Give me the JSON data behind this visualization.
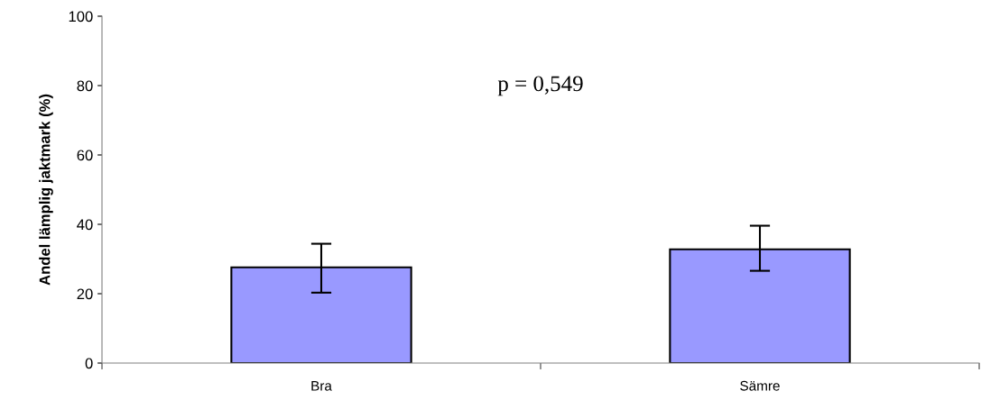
{
  "chart_data": {
    "type": "bar",
    "ylabel": "Andel lämplig jaktmark (%)",
    "categories": [
      "Bra",
      "Sämre"
    ],
    "values": [
      27.6,
      32.8
    ],
    "errors": [
      [
        20.3,
        34.4
      ],
      [
        26.6,
        39.6
      ]
    ],
    "color": "#9999ff",
    "ylim": [
      0,
      100
    ],
    "yticks": [
      0,
      20,
      40,
      60,
      80,
      100
    ],
    "annotations": [
      "p = 0,549"
    ],
    "grid": false
  }
}
